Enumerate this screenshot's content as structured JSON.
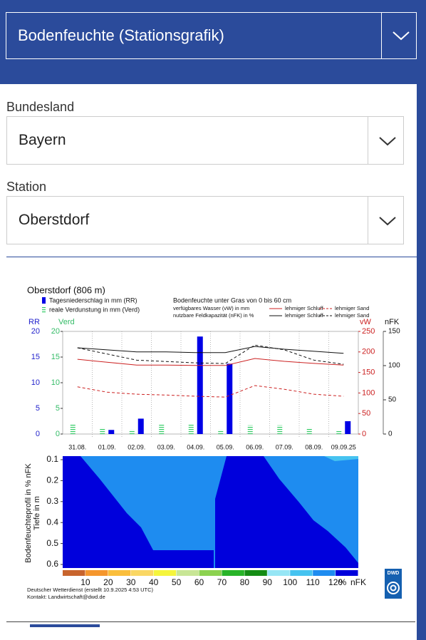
{
  "header": {
    "title": "Bodenfeuchte (Stationsgrafik)"
  },
  "form": {
    "bundesland_label": "Bundesland",
    "bundesland": "Bayern",
    "station_label": "Station",
    "station": "Oberstdorf"
  },
  "chart_data": {
    "type": "bar",
    "title": "Oberstdorf (806 m)",
    "subtitle": "Bodenfeuchte unter Gras von 0 bis 60 cm",
    "categories": [
      "31.08.",
      "01.09.",
      "02.09.",
      "03.09.",
      "04.09.",
      "05.09.",
      "06.09.",
      "07.09.",
      "08.09.",
      "09.09.25"
    ],
    "series": [
      {
        "name": "Tagesniederschlag in mm (RR)",
        "color": "#0000e6",
        "values": [
          0,
          0.8,
          3,
          0,
          19,
          13.7,
          0,
          0,
          0,
          2.5
        ]
      },
      {
        "name": "reale Verdunstung in mm (Verd)",
        "color": "#33cc66",
        "values": [
          2,
          1.2,
          0.8,
          1.8,
          2,
          0.8,
          1.7,
          1.7,
          1.2,
          0.6
        ]
      }
    ],
    "line_legend": {
      "vw": "verfügbares Wasser (vW) in mm",
      "nfk": "nutzbare Feldkapazität (nFK) in %"
    },
    "lines": [
      {
        "name": "lehmiger Schluff",
        "group": "vw",
        "color": "#cc2222",
        "dash": false,
        "axis": "y2",
        "values": [
          182,
          175,
          168,
          168,
          167,
          167,
          184,
          177,
          172,
          168
        ]
      },
      {
        "name": "lehmiger Sand",
        "group": "vw",
        "color": "#cc2222",
        "dash": true,
        "axis": "y2",
        "values": [
          115,
          102,
          97,
          95,
          92,
          90,
          118,
          109,
          97,
          92
        ]
      },
      {
        "name": "lehmiger Schluff",
        "group": "nfk",
        "color": "#111111",
        "dash": false,
        "axis": "y3",
        "values": [
          126,
          123,
          120,
          120,
          119,
          119,
          128,
          124,
          121,
          118
        ]
      },
      {
        "name": "lehmiger Sand",
        "group": "nfk",
        "color": "#111111",
        "dash": true,
        "axis": "y3",
        "values": [
          126,
          117,
          108,
          106,
          104,
          103,
          130,
          123,
          108,
          102
        ]
      }
    ],
    "ylabel": "RR",
    "ylabel_verd": "Verd",
    "y2label": "vW",
    "y3label": "nFK",
    "ylim": [
      0,
      20
    ],
    "yticks": [
      0,
      5,
      10,
      15,
      20
    ],
    "y2lim": [
      0,
      250
    ],
    "y2ticks": [
      0,
      50,
      100,
      150,
      200,
      250
    ],
    "y3lim": [
      0,
      150
    ],
    "y3ticks": [
      0,
      50,
      100,
      150
    ],
    "grid": true
  },
  "profile": {
    "ylabel": "Bodenfeuchteprofil in % nFK",
    "ylabel2": "Tiefe in m",
    "ylim": [
      0.1,
      0.6
    ],
    "yticks": [
      0.1,
      0.2,
      0.3,
      0.4,
      0.5,
      0.6
    ],
    "colorbar": {
      "ticks": [
        10,
        20,
        30,
        40,
        50,
        60,
        70,
        80,
        90,
        100,
        110,
        120
      ],
      "unit": "%",
      "unit2": "nFK",
      "colors": [
        "#c8642d",
        "#f5962d",
        "#fabe3c",
        "#fad764",
        "#f5f53c",
        "#c8e696",
        "#8cd250",
        "#28b428",
        "#148c14",
        "#96e6f5",
        "#46c3f0",
        "#1e8cf0",
        "#0000dc"
      ]
    }
  },
  "footer": {
    "credit": "Deutscher Wetterdienst (erstellt 10.9.2025 4:53 UTC)",
    "contact": "Kontakt: Landwirtschaft@dwd.de",
    "logo": "DWD"
  }
}
